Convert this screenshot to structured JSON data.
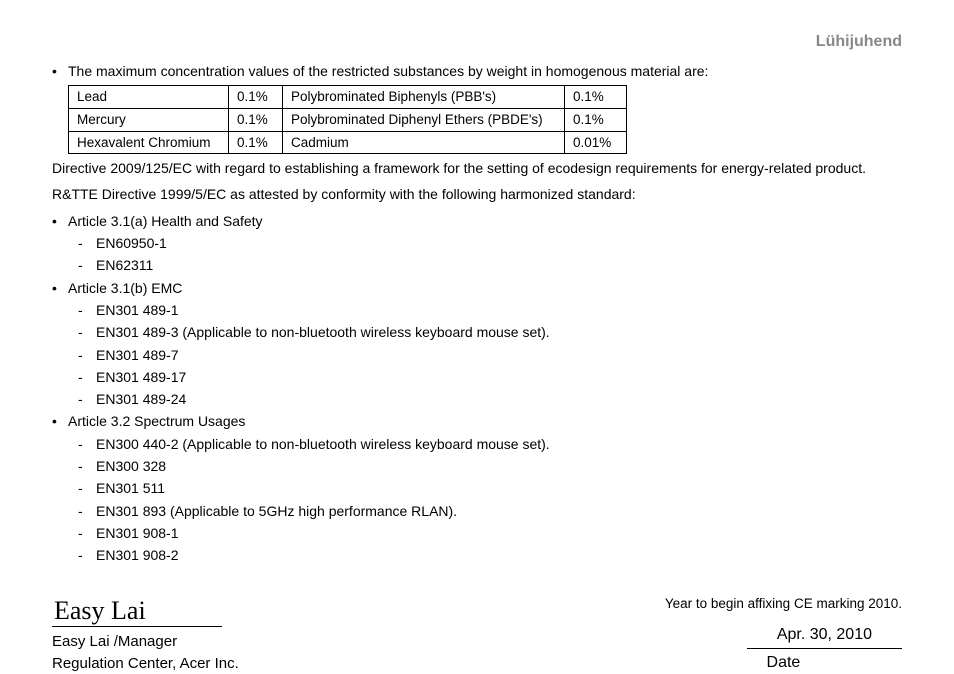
{
  "header": {
    "right": "Lühijuhend"
  },
  "intro_bullets": [
    "The maximum concentration values of the restricted substances by weight in homogenous material are:"
  ],
  "substances_table": {
    "rows": [
      [
        "Lead",
        "0.1%",
        "Polybrominated Biphenyls (PBB's)",
        "0.1%"
      ],
      [
        "Mercury",
        "0.1%",
        "Polybrominated Diphenyl Ethers (PBDE's)",
        "0.1%"
      ],
      [
        "Hexavalent Chromium",
        "0.1%",
        "Cadmium",
        "0.01%"
      ]
    ]
  },
  "para1": "Directive 2009/125/EC with regard to establishing a framework for the setting of ecodesign requirements for energy-related product.",
  "para2": "R&TTE Directive 1999/5/EC as attested by conformity with the following harmonized standard:",
  "articles": [
    {
      "title": "Article 3.1(a) Health and Safety",
      "items": [
        "EN60950-1",
        "EN62311"
      ]
    },
    {
      "title": "Article 3.1(b) EMC",
      "items": [
        "EN301 489-1",
        "EN301 489-3 (Applicable to non-bluetooth wireless keyboard mouse set).",
        "EN301 489-7",
        "EN301 489-17",
        "EN301 489-24"
      ]
    },
    {
      "title": "Article 3.2 Spectrum Usages",
      "items": [
        "EN300 440-2  (Applicable to non-bluetooth wireless keyboard mouse set).",
        "EN300 328",
        "EN301 511",
        "EN301 893 (Applicable to 5GHz high performance RLAN).",
        "EN301 908-1",
        "EN301 908-2"
      ]
    }
  ],
  "ce_note": "Year to begin affixing CE marking 2010.",
  "signature": {
    "script": "Easy Lai",
    "name_title": "Easy Lai /Manager",
    "org": "Regulation Center, Acer Inc."
  },
  "date": {
    "value": "Apr. 30, 2010",
    "label": "Date"
  }
}
